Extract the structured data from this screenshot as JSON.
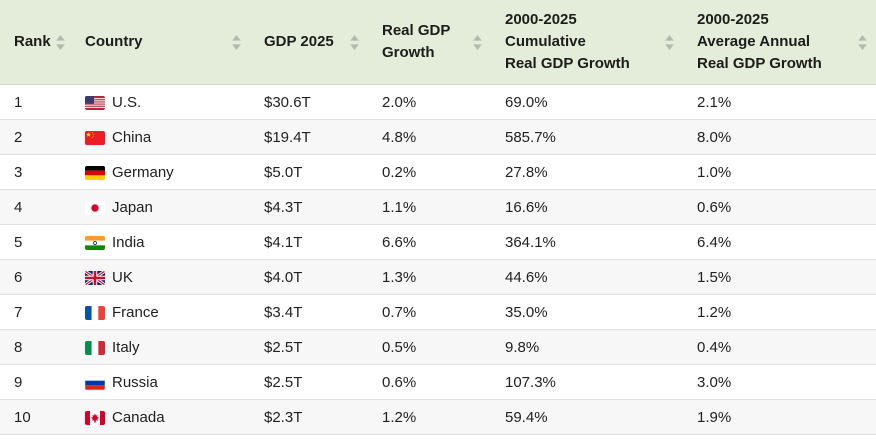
{
  "colors": {
    "header_bg": "#e4ecda",
    "header_text": "#1d1d1d",
    "cell_text": "#212121",
    "row_alt_bg": "#f7f7f7",
    "row_border": "#e2e2e2",
    "header_border": "#d6d6d6",
    "sort_icon": "#b4b9ae"
  },
  "table": {
    "columns": [
      {
        "id": "rank",
        "label": "Rank",
        "sort_icon": "sort-arrows-icon"
      },
      {
        "id": "country",
        "label": "Country",
        "sort_icon": "sort-arrows-icon"
      },
      {
        "id": "gdp_2025",
        "label": "GDP 2025",
        "sort_icon": "sort-arrows-icon"
      },
      {
        "id": "real_gdp_growth",
        "label": "Real GDP\nGrowth",
        "sort_icon": "sort-arrows-icon"
      },
      {
        "id": "cumulative_growth",
        "label": "2000-2025\nCumulative\nReal GDP Growth",
        "sort_icon": "sort-arrows-icon"
      },
      {
        "id": "avg_annual_growth",
        "label": "2000-2025\nAverage Annual\nReal GDP Growth",
        "sort_icon": "sort-arrows-icon"
      }
    ],
    "rows": [
      {
        "rank": "1",
        "flag": "us",
        "country": "U.S.",
        "gdp_2025": "$30.6T",
        "real_gdp_growth": "2.0%",
        "cumulative_growth": "69.0%",
        "avg_annual_growth": "2.1%"
      },
      {
        "rank": "2",
        "flag": "cn",
        "country": "China",
        "gdp_2025": "$19.4T",
        "real_gdp_growth": "4.8%",
        "cumulative_growth": "585.7%",
        "avg_annual_growth": "8.0%"
      },
      {
        "rank": "3",
        "flag": "de",
        "country": "Germany",
        "gdp_2025": "$5.0T",
        "real_gdp_growth": "0.2%",
        "cumulative_growth": "27.8%",
        "avg_annual_growth": "1.0%"
      },
      {
        "rank": "4",
        "flag": "jp",
        "country": "Japan",
        "gdp_2025": "$4.3T",
        "real_gdp_growth": "1.1%",
        "cumulative_growth": "16.6%",
        "avg_annual_growth": "0.6%"
      },
      {
        "rank": "5",
        "flag": "in",
        "country": "India",
        "gdp_2025": "$4.1T",
        "real_gdp_growth": "6.6%",
        "cumulative_growth": "364.1%",
        "avg_annual_growth": "6.4%"
      },
      {
        "rank": "6",
        "flag": "gb",
        "country": "UK",
        "gdp_2025": "$4.0T",
        "real_gdp_growth": "1.3%",
        "cumulative_growth": "44.6%",
        "avg_annual_growth": "1.5%"
      },
      {
        "rank": "7",
        "flag": "fr",
        "country": "France",
        "gdp_2025": "$3.4T",
        "real_gdp_growth": "0.7%",
        "cumulative_growth": "35.0%",
        "avg_annual_growth": "1.2%"
      },
      {
        "rank": "8",
        "flag": "it",
        "country": "Italy",
        "gdp_2025": "$2.5T",
        "real_gdp_growth": "0.5%",
        "cumulative_growth": "9.8%",
        "avg_annual_growth": "0.4%"
      },
      {
        "rank": "9",
        "flag": "ru",
        "country": "Russia",
        "gdp_2025": "$2.5T",
        "real_gdp_growth": "0.6%",
        "cumulative_growth": "107.3%",
        "avg_annual_growth": "3.0%"
      },
      {
        "rank": "10",
        "flag": "ca",
        "country": "Canada",
        "gdp_2025": "$2.3T",
        "real_gdp_growth": "1.2%",
        "cumulative_growth": "59.4%",
        "avg_annual_growth": "1.9%"
      }
    ]
  }
}
